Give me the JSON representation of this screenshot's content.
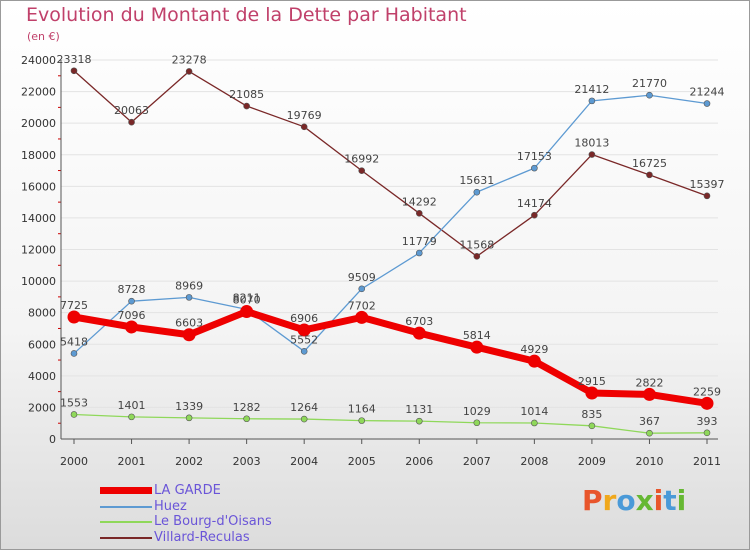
{
  "title": "Evolution du Montant de la Dette par Habitant",
  "subtitle": "(en €)",
  "logo": {
    "text": "Proxiti",
    "colors": [
      "#e8552b",
      "#f0a81c",
      "#4a9ad8",
      "#66b833",
      "#e8552b",
      "#4a9ad8",
      "#66b833"
    ]
  },
  "chart_data": {
    "type": "line",
    "x": [
      "2000",
      "2001",
      "2002",
      "2003",
      "2004",
      "2005",
      "2006",
      "2007",
      "2008",
      "2009",
      "2010",
      "2011"
    ],
    "ylim": [
      0,
      24000
    ],
    "yticks": [
      "0",
      "2000",
      "4000",
      "6000",
      "8000",
      "10000",
      "12000",
      "14000",
      "16000",
      "18000",
      "20000",
      "22000",
      "24000"
    ],
    "legend_position": "bottom-left",
    "series": [
      {
        "name": "LA GARDE",
        "color": "#ee0000",
        "values": [
          7725,
          7096,
          6603,
          8070,
          6906,
          7702,
          6703,
          5814,
          4929,
          2915,
          2822,
          2259
        ]
      },
      {
        "name": "Huez",
        "color": "#5d9ad2",
        "values": [
          5418,
          8728,
          8969,
          8211,
          5552,
          9509,
          11779,
          15631,
          17153,
          21412,
          21770,
          21244
        ]
      },
      {
        "name": "Le Bourg-d'Oisans",
        "color": "#8fd85a",
        "values": [
          1553,
          1401,
          1339,
          1282,
          1264,
          1164,
          1131,
          1029,
          1014,
          835,
          367,
          393
        ]
      },
      {
        "name": "Villard-Reculas",
        "color": "#7a2828",
        "values": [
          23318,
          20063,
          23278,
          21085,
          19769,
          16992,
          14292,
          11568,
          14174,
          18013,
          16725,
          15397
        ]
      }
    ]
  }
}
